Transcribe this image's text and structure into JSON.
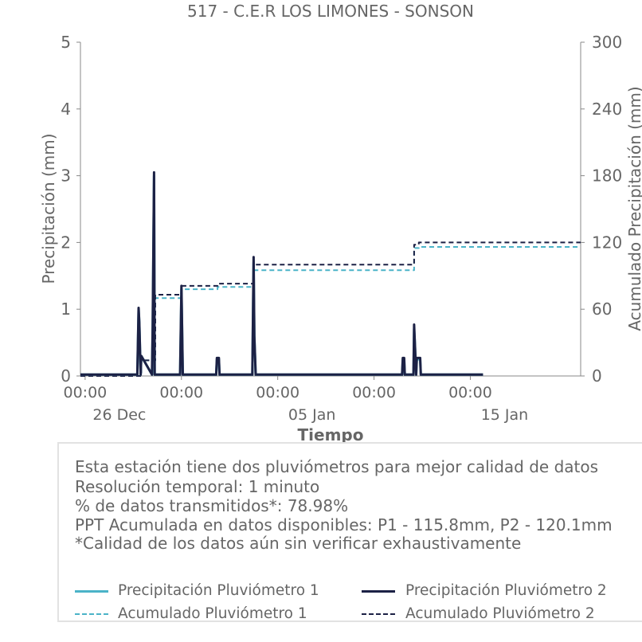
{
  "chart_data": {
    "type": "line",
    "title": "517 - C.E.R LOS LIMONES - SONSON",
    "xlabel": "Tiempo",
    "ylabel_left": "Precipitación (mm)",
    "ylabel_right": "Acumulado Precipitación (mm)",
    "ylim_left": [
      0,
      5
    ],
    "ylim_right": [
      0,
      300
    ],
    "yticks_left": [
      "0",
      "1",
      "2",
      "3",
      "4",
      "5"
    ],
    "yticks_right": [
      "0",
      "60",
      "120",
      "180",
      "240",
      "300"
    ],
    "xlim": [
      "2022-12-21T17:00",
      "2023-01-21T21:00"
    ],
    "xticks": [
      {
        "x": "2022-12-22T00:00",
        "label": "00:00",
        "sublabel": "26 Dec"
      },
      {
        "x": "2022-12-28T00:00",
        "label": "00:00",
        "sublabel": ""
      },
      {
        "x": "2023-01-03T00:00",
        "label": "00:00",
        "sublabel": "05 Jan"
      },
      {
        "x": "2023-01-09T00:00",
        "label": "00:00",
        "sublabel": ""
      },
      {
        "x": "2023-01-15T00:00",
        "label": "00:00",
        "sublabel": "15 Jan"
      }
    ],
    "grid": false,
    "series": [
      {
        "name": "Precipitación Pluviómetro 1",
        "axis": "left",
        "style": "solid",
        "color": "#4bb3c8",
        "x": [
          "2022-12-21T17:00",
          "2022-12-25T06:00",
          "2022-12-25T08:00",
          "2022-12-25T09:00",
          "2022-12-25T11:00",
          "2022-12-25T12:00",
          "2022-12-26T04:00",
          "2022-12-26T05:00",
          "2022-12-26T07:00",
          "2022-12-26T08:00",
          "2022-12-26T09:00",
          "2022-12-26T10:00",
          "2022-12-27T22:00",
          "2022-12-28T00:00",
          "2022-12-28T02:00",
          "2022-12-30T04:00",
          "2022-12-30T05:00",
          "2022-12-30T06:00",
          "2022-12-30T07:00",
          "2022-12-30T08:00",
          "2022-12-30T09:00",
          "2023-01-01T10:00",
          "2023-01-01T12:00",
          "2023-01-01T13:00",
          "2023-01-01T15:00",
          "2023-01-10T18:00",
          "2023-01-10T19:00",
          "2023-01-10T21:00",
          "2023-01-10T22:00",
          "2023-01-11T11:00",
          "2023-01-11T12:00",
          "2023-01-11T13:00",
          "2023-01-11T15:00",
          "2023-01-11T16:00",
          "2023-01-11T18:00",
          "2023-01-11T19:00",
          "2023-01-11T21:00",
          "2023-01-11T22:00",
          "2023-01-15T19:00"
        ],
        "values": [
          0.02,
          0.02,
          1.0,
          0.8,
          0.02,
          0.3,
          0.02,
          0.7,
          3.0,
          0.02,
          0.02,
          0.02,
          0.02,
          1.3,
          0.02,
          0.02,
          0.25,
          0.25,
          0.25,
          0.25,
          0.02,
          0.02,
          1.7,
          0.6,
          0.02,
          0.02,
          0.25,
          0.25,
          0.02,
          0.02,
          0.7,
          0.5,
          0.02,
          0.25,
          0.25,
          0.25,
          0.25,
          0.02,
          0.02
        ]
      },
      {
        "name": "Precipitación Pluviómetro 2",
        "axis": "left",
        "style": "solid",
        "color": "#1c2145",
        "x": [
          "2022-12-21T17:00",
          "2022-12-25T06:00",
          "2022-12-25T08:00",
          "2022-12-25T09:00",
          "2022-12-25T11:00",
          "2022-12-25T12:00",
          "2022-12-26T04:00",
          "2022-12-26T05:00",
          "2022-12-26T07:00",
          "2022-12-26T08:00",
          "2022-12-26T09:00",
          "2022-12-26T10:00",
          "2022-12-27T22:00",
          "2022-12-28T00:00",
          "2022-12-28T02:00",
          "2022-12-30T04:00",
          "2022-12-30T05:00",
          "2022-12-30T06:00",
          "2022-12-30T07:00",
          "2022-12-30T08:00",
          "2022-12-30T09:00",
          "2023-01-01T10:00",
          "2023-01-01T12:00",
          "2023-01-01T13:00",
          "2023-01-01T15:00",
          "2023-01-10T18:00",
          "2023-01-10T19:00",
          "2023-01-10T21:00",
          "2023-01-10T22:00",
          "2023-01-11T11:00",
          "2023-01-11T12:00",
          "2023-01-11T13:00",
          "2023-01-11T15:00",
          "2023-01-11T16:00",
          "2023-01-11T18:00",
          "2023-01-11T19:00",
          "2023-01-11T21:00",
          "2023-01-11T22:00",
          "2023-01-15T19:00"
        ],
        "values": [
          0.02,
          0.02,
          1.02,
          0.8,
          0.02,
          0.3,
          0.02,
          0.75,
          3.05,
          0.02,
          0.02,
          0.02,
          0.02,
          1.35,
          0.02,
          0.02,
          0.27,
          0.27,
          0.27,
          0.27,
          0.02,
          0.02,
          1.78,
          0.6,
          0.02,
          0.02,
          0.27,
          0.27,
          0.02,
          0.02,
          0.77,
          0.5,
          0.02,
          0.27,
          0.27,
          0.27,
          0.27,
          0.02,
          0.02
        ]
      },
      {
        "name": "Acumulado Pluviómetro 1",
        "axis": "right",
        "style": "dashed",
        "color": "#4bb3c8",
        "x": [
          "2022-12-21T17:00",
          "2022-12-25T06:00",
          "2022-12-25T12:00",
          "2022-12-26T06:00",
          "2022-12-26T09:00",
          "2022-12-28T00:00",
          "2022-12-30T06:00",
          "2023-01-01T12:00",
          "2023-01-10T20:00",
          "2023-01-11T12:00",
          "2023-01-11T19:00",
          "2023-01-21T21:00"
        ],
        "values": [
          0,
          0,
          14,
          14,
          70,
          78,
          80,
          95,
          95,
          115,
          116,
          116
        ]
      },
      {
        "name": "Acumulado Pluviómetro 2",
        "axis": "right",
        "style": "dashed",
        "color": "#1c2145",
        "x": [
          "2022-12-21T17:00",
          "2022-12-25T06:00",
          "2022-12-25T12:00",
          "2022-12-26T06:00",
          "2022-12-26T09:00",
          "2022-12-28T00:00",
          "2022-12-30T06:00",
          "2023-01-01T12:00",
          "2023-01-10T20:00",
          "2023-01-11T12:00",
          "2023-01-11T19:00",
          "2023-01-21T21:00"
        ],
        "values": [
          0,
          0,
          14,
          14,
          73,
          81,
          83,
          100,
          100,
          118,
          120,
          120
        ]
      }
    ]
  },
  "info": {
    "line1": "Esta estación tiene dos pluviómetros para mejor calidad de datos",
    "line2": "Resolución temporal: 1 minuto",
    "line3": "% de datos transmitidos*: 78.98%",
    "line4": "PPT Acumulada en datos disponibles: P1 - 115.8mm, P2 - 120.1mm",
    "line5": "*Calidad de los datos aún sin verificar exhaustivamente"
  },
  "legend": {
    "p1": "Precipitación Pluviómetro 1",
    "p2": "Precipitación Pluviómetro 2",
    "a1": "Acumulado Pluviómetro 1",
    "a2": "Acumulado Pluviómetro 2",
    "color_p1": "#4bb3c8",
    "color_p2": "#1c2145"
  }
}
